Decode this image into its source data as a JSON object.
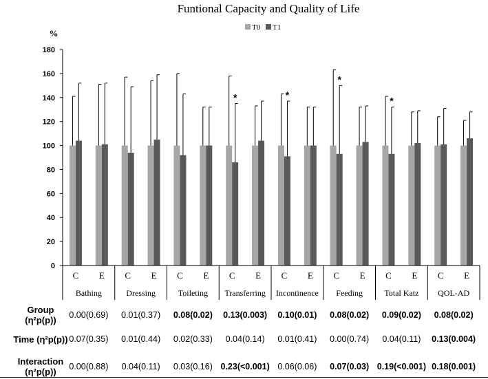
{
  "chart_data": {
    "type": "bar",
    "title": "Funtional Capacity and Quality of Life",
    "ylabel": "%",
    "ylim": [
      0,
      180
    ],
    "yticks": [
      0,
      20,
      40,
      60,
      80,
      100,
      120,
      140,
      160,
      180
    ],
    "legend": {
      "position": "top",
      "entries": [
        "T0",
        "T1"
      ]
    },
    "colors": {
      "T0": "#a6a6a6",
      "T1": "#595959"
    },
    "categories": [
      "Bathing",
      "Dressing",
      "Toileting",
      "Transferring",
      "Incontinence",
      "Feeding",
      "Total Katz",
      "QOL-AD"
    ],
    "subgroups": [
      "C",
      "E"
    ],
    "groups": [
      {
        "category": "Bathing",
        "C": {
          "T0": 100,
          "T0_err": 141,
          "T1": 104,
          "T1_err": 152,
          "star": false
        },
        "E": {
          "T0": 100,
          "T0_err": 151,
          "T1": 101,
          "T1_err": 152,
          "star": false
        }
      },
      {
        "category": "Dressing",
        "C": {
          "T0": 100,
          "T0_err": 157,
          "T1": 94,
          "T1_err": 149,
          "star": false
        },
        "E": {
          "T0": 100,
          "T0_err": 154,
          "T1": 105,
          "T1_err": 159,
          "star": false
        }
      },
      {
        "category": "Toileting",
        "C": {
          "T0": 100,
          "T0_err": 160,
          "T1": 92,
          "T1_err": 143,
          "star": false
        },
        "E": {
          "T0": 100,
          "T0_err": 132,
          "T1": 100,
          "T1_err": 132,
          "star": false
        }
      },
      {
        "category": "Transferring",
        "C": {
          "T0": 100,
          "T0_err": 158,
          "T1": 86,
          "T1_err": 135,
          "star": true
        },
        "E": {
          "T0": 100,
          "T0_err": 133,
          "T1": 104,
          "T1_err": 137,
          "star": false
        }
      },
      {
        "category": "Incontinence",
        "C": {
          "T0": 100,
          "T0_err": 143,
          "T1": 91,
          "T1_err": 137,
          "star": true
        },
        "E": {
          "T0": 100,
          "T0_err": 132,
          "T1": 100,
          "T1_err": 132,
          "star": false
        }
      },
      {
        "category": "Feeding",
        "C": {
          "T0": 100,
          "T0_err": 163,
          "T1": 93,
          "T1_err": 150,
          "star": true
        },
        "E": {
          "T0": 100,
          "T0_err": 132,
          "T1": 103,
          "T1_err": 133,
          "star": false
        }
      },
      {
        "category": "Total Katz",
        "C": {
          "T0": 100,
          "T0_err": 141,
          "T1": 93,
          "T1_err": 132,
          "star": true
        },
        "E": {
          "T0": 100,
          "T0_err": 128,
          "T1": 102,
          "T1_err": 129,
          "star": false
        }
      },
      {
        "category": "QOL-AD",
        "C": {
          "T0": 100,
          "T0_err": 124,
          "T1": 101,
          "T1_err": 131,
          "star": false
        },
        "E": {
          "T0": 100,
          "T0_err": 121,
          "T1": 106,
          "T1_err": 128,
          "star": false
        }
      }
    ],
    "annotation_symbol": "*"
  },
  "stats_table": {
    "rows": [
      {
        "label_line1": "Group",
        "label_line2": "(η²p(p))",
        "cells": [
          {
            "text": "0.00(0.69)",
            "bold": false
          },
          {
            "text": "0.01(0.37)",
            "bold": false
          },
          {
            "text": "0.08(0.02)",
            "bold": true
          },
          {
            "text": "0.13(0.003)",
            "bold": true
          },
          {
            "text": "0.10(0.01)",
            "bold": true
          },
          {
            "text": "0.08(0.02)",
            "bold": true
          },
          {
            "text": "0.09(0.02)",
            "bold": true
          },
          {
            "text": "0.08(0.02)",
            "bold": true
          }
        ]
      },
      {
        "label_line1": "Time (η²p(p))",
        "label_line2": "",
        "cells": [
          {
            "text": "0.07(0.35)",
            "bold": false
          },
          {
            "text": "0.01(0.44)",
            "bold": false
          },
          {
            "text": "0.02(0.33)",
            "bold": false
          },
          {
            "text": "0.04(0.14)",
            "bold": false
          },
          {
            "text": "0.01(0.41)",
            "bold": false
          },
          {
            "text": "0.00(0.74)",
            "bold": false
          },
          {
            "text": "0.04(0.11)",
            "bold": false
          },
          {
            "text": "0.13(0.004)",
            "bold": true
          }
        ]
      },
      {
        "label_line1": "Interaction",
        "label_line2": "(η²p(p))",
        "cells": [
          {
            "text": "0.00(0.88)",
            "bold": false
          },
          {
            "text": "0.04(0.11)",
            "bold": false
          },
          {
            "text": "0.03(0.16)",
            "bold": false
          },
          {
            "text": "0.23(<0.001)",
            "bold": true
          },
          {
            "text": "0.06(0.06)",
            "bold": false
          },
          {
            "text": "0.07(0.03)",
            "bold": true
          },
          {
            "text": "0.19(<0.001)",
            "bold": true
          },
          {
            "text": "0.18(0.001)",
            "bold": true
          }
        ]
      }
    ]
  }
}
